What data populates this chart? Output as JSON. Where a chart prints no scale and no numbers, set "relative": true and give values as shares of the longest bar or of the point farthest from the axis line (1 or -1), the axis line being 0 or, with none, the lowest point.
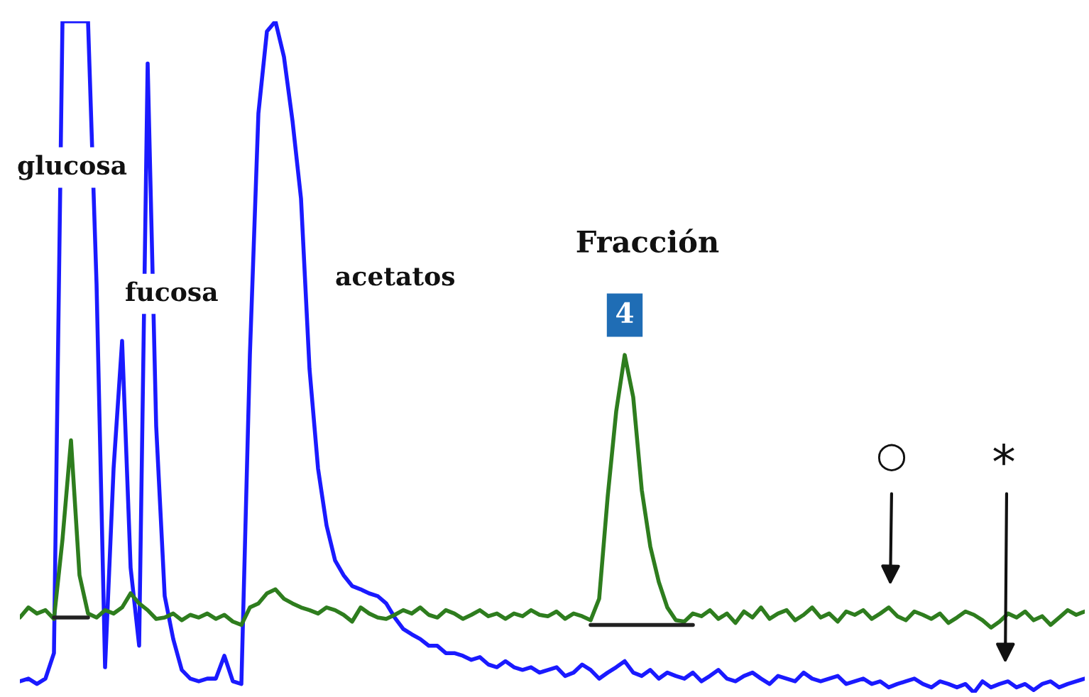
{
  "chart_data": {
    "type": "line",
    "relative": true,
    "legend": false,
    "categories": [
      null,
      null,
      null,
      null,
      null,
      null,
      null,
      null,
      null,
      null,
      null,
      null,
      null,
      null,
      null,
      null,
      null,
      null,
      null,
      null,
      null,
      null,
      null,
      null,
      null,
      null,
      null,
      null,
      null,
      null,
      null,
      null,
      null,
      null,
      null,
      null,
      null,
      null,
      null,
      null,
      null,
      null,
      null,
      null,
      null,
      null,
      null,
      null,
      null,
      null,
      null,
      null,
      null,
      null,
      null,
      null,
      null,
      null,
      null,
      null,
      null,
      null,
      null,
      null,
      null,
      null,
      null,
      null,
      null,
      null,
      null,
      null,
      null,
      null,
      null,
      null,
      null,
      null,
      null,
      null,
      null,
      null,
      null,
      null,
      null,
      null,
      null,
      null,
      null,
      null,
      null,
      null,
      null,
      null,
      null,
      null,
      null,
      null,
      null,
      null,
      null,
      null,
      null,
      null,
      null,
      null,
      null,
      null,
      null,
      null,
      null,
      null,
      null,
      null,
      null,
      null,
      null,
      null,
      null,
      null,
      null,
      null,
      null,
      null,
      null,
      null
    ],
    "series": [
      {
        "color": "#1a1aff",
        "values": [
          0.017,
          0.021,
          0.013,
          0.021,
          0.059,
          1,
          1,
          1,
          1,
          0.609,
          0.038,
          0.334,
          0.524,
          0.186,
          0.07,
          0.937,
          0.397,
          0.144,
          0.08,
          0.034,
          0.021,
          0.017,
          0.021,
          0.021,
          0.055,
          0.017,
          0.013,
          0.503,
          0.863,
          0.985,
          1,
          0.947,
          0.852,
          0.736,
          0.482,
          0.334,
          0.249,
          0.197,
          0.175,
          0.159,
          0.154,
          0.148,
          0.144,
          0.133,
          0.112,
          0.095,
          0.087,
          0.08,
          0.07,
          0.07,
          0.059,
          0.059,
          0.055,
          0.049,
          0.053,
          0.042,
          0.038,
          0.047,
          0.038,
          0.034,
          0.038,
          0.03,
          0.034,
          0.038,
          0.025,
          0.03,
          0.042,
          0.034,
          0.021,
          0.03,
          0.038,
          0.047,
          0.03,
          0.025,
          0.034,
          0.021,
          0.03,
          0.025,
          0.021,
          0.03,
          0.017,
          0.025,
          0.034,
          0.021,
          0.017,
          0.025,
          0.03,
          0.021,
          0.013,
          0.025,
          0.021,
          0.017,
          0.03,
          0.021,
          0.017,
          0.021,
          0.025,
          0.013,
          0.017,
          0.021,
          0.013,
          0.017,
          0.008,
          0.013,
          0.017,
          0.021,
          0.013,
          0.008,
          0.017,
          0.013,
          0.008,
          0.013,
          0,
          0.017,
          0.008,
          0.013,
          0.017,
          0.008,
          0.013,
          0.004,
          0.013,
          0.017,
          0.008,
          0.013,
          0.017,
          0.021
        ]
      },
      {
        "color": "#2e7d1e",
        "values": [
          0.112,
          0.127,
          0.118,
          0.123,
          0.11,
          0.228,
          0.376,
          0.175,
          0.118,
          0.112,
          0.123,
          0.118,
          0.127,
          0.148,
          0.133,
          0.123,
          0.11,
          0.112,
          0.118,
          0.108,
          0.116,
          0.112,
          0.118,
          0.11,
          0.116,
          0.106,
          0.101,
          0.127,
          0.133,
          0.148,
          0.154,
          0.14,
          0.133,
          0.127,
          0.123,
          0.118,
          0.127,
          0.123,
          0.116,
          0.106,
          0.127,
          0.118,
          0.112,
          0.11,
          0.116,
          0.123,
          0.118,
          0.127,
          0.116,
          0.112,
          0.123,
          0.118,
          0.11,
          0.116,
          0.123,
          0.114,
          0.118,
          0.11,
          0.118,
          0.114,
          0.123,
          0.116,
          0.114,
          0.121,
          0.11,
          0.118,
          0.114,
          0.108,
          0.14,
          0.292,
          0.419,
          0.503,
          0.44,
          0.302,
          0.218,
          0.165,
          0.127,
          0.108,
          0.106,
          0.118,
          0.114,
          0.123,
          0.11,
          0.118,
          0.104,
          0.121,
          0.112,
          0.127,
          0.11,
          0.118,
          0.123,
          0.108,
          0.116,
          0.127,
          0.112,
          0.118,
          0.106,
          0.121,
          0.116,
          0.123,
          0.11,
          0.118,
          0.127,
          0.114,
          0.108,
          0.121,
          0.116,
          0.11,
          0.118,
          0.104,
          0.112,
          0.121,
          0.116,
          0.108,
          0.097,
          0.106,
          0.118,
          0.112,
          0.121,
          0.108,
          0.114,
          0.101,
          0.112,
          0.123,
          0.116,
          0.121
        ]
      },
      {
        "color": "#222222",
        "values": [
          null,
          null,
          null,
          null,
          0.112,
          0.112,
          0.112,
          0.112,
          0.112,
          null,
          null,
          null,
          null,
          null,
          null,
          null,
          null,
          null,
          null,
          null,
          null,
          null,
          null,
          null,
          null,
          null,
          null,
          null,
          null,
          null,
          null,
          null,
          null,
          null,
          null,
          null,
          null,
          null,
          null,
          null,
          null,
          null,
          null,
          null,
          null,
          null,
          null,
          null,
          null,
          null,
          null,
          null,
          null,
          null,
          null,
          null,
          null,
          null,
          null,
          null,
          null,
          null,
          null,
          null,
          null,
          null,
          null,
          0.101,
          0.101,
          0.101,
          0.101,
          0.101,
          0.101,
          0.101,
          0.101,
          0.101,
          0.101,
          0.101,
          0.101,
          0.101,
          null,
          null,
          null,
          null,
          null,
          null,
          null,
          null,
          null,
          null,
          null,
          null,
          null,
          null,
          null,
          null,
          null,
          null,
          null,
          null,
          null,
          null,
          null,
          null,
          null,
          null,
          null,
          null,
          null,
          null,
          null,
          null,
          null,
          null,
          null,
          null,
          null,
          null,
          null,
          null,
          null,
          null,
          null,
          null,
          null,
          null
        ]
      }
    ],
    "annotations": [
      "glucosa",
      "fucosa",
      "acetatos",
      "Fracción",
      "4",
      "○",
      "*"
    ]
  }
}
